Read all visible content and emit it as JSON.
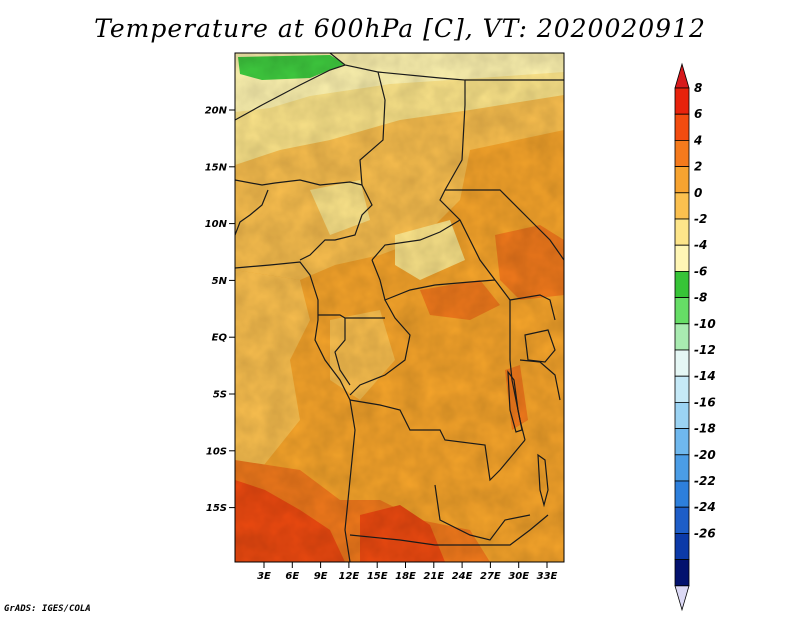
{
  "title": "Temperature at 600hPa [C], VT: 2020020912",
  "credit": "GrADS: IGES/COLA",
  "map": {
    "lat_labels": [
      "20N",
      "15N",
      "10N",
      "5N",
      "EQ",
      "5S",
      "10S",
      "15S"
    ],
    "lon_labels": [
      "3E",
      "6E",
      "9E",
      "12E",
      "15E",
      "18E",
      "21E",
      "24E",
      "27E",
      "30E",
      "33E"
    ],
    "fill_colors": {
      "neg4_to_neg2": "#fff4b0",
      "neg2_to_0": "#fde58a",
      "zero_to_2": "#fbc04f",
      "two_to_4": "#f7a52b",
      "four_to_6": "#f27a1c",
      "six_to_8": "#ee4a10",
      "green_cold": "#3fcc3f",
      "boundary": "#1a1a1a"
    }
  },
  "colorbar": {
    "labels": [
      "8",
      "6",
      "4",
      "2",
      "0",
      "-2",
      "-4",
      "-6",
      "-8",
      "-10",
      "-12",
      "-14",
      "-16",
      "-18",
      "-20",
      "-22",
      "-24",
      "-26"
    ],
    "colors": [
      "#e8230c",
      "#f24c10",
      "#f57a1c",
      "#f7a330",
      "#fbc04f",
      "#fde58a",
      "#fff6b5",
      "#37c437",
      "#66dd66",
      "#a9ebb1",
      "#e5f7f5",
      "#c5e9f7",
      "#9bd3f3",
      "#6fb8ee",
      "#4b9de6",
      "#2d7fdc",
      "#1e5ec8",
      "#0c3aa8",
      "#03126e"
    ],
    "top_arrow_color": "#d7191c",
    "bottom_arrow_color": "#dcd9f5"
  }
}
